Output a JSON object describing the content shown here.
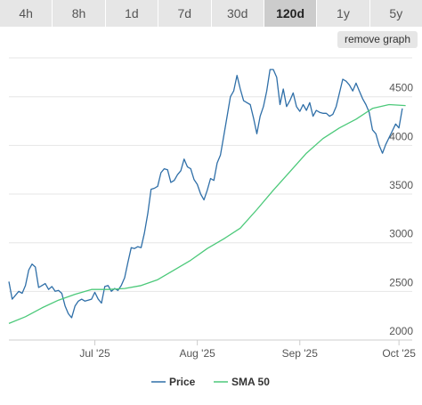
{
  "tabs": [
    {
      "label": "4h",
      "active": false
    },
    {
      "label": "8h",
      "active": false
    },
    {
      "label": "1d",
      "active": false
    },
    {
      "label": "7d",
      "active": false
    },
    {
      "label": "30d",
      "active": false
    },
    {
      "label": "120d",
      "active": true
    },
    {
      "label": "1y",
      "active": false
    },
    {
      "label": "5y",
      "active": false
    }
  ],
  "remove_graph_label": "remove graph",
  "chart_data": {
    "type": "line",
    "x_ticks": [
      "Jul '25",
      "Aug '25",
      "Sep '25",
      "Oct '25"
    ],
    "x_tick_days": [
      26,
      57,
      88,
      118
    ],
    "x_range": [
      0,
      122
    ],
    "ylim": [
      2000,
      4900
    ],
    "y_ticks": [
      2000,
      2500,
      3000,
      3500,
      4000,
      4500
    ],
    "y_tick_labels": [
      "2000",
      "2500",
      "3000",
      "3500",
      "4000",
      "4500"
    ],
    "grid": true,
    "legend_position": "bottom",
    "series": [
      {
        "name": "Price",
        "color": "#2f6fa8",
        "points": [
          [
            0,
            2600
          ],
          [
            1,
            2420
          ],
          [
            2,
            2460
          ],
          [
            3,
            2500
          ],
          [
            4,
            2480
          ],
          [
            5,
            2560
          ],
          [
            6,
            2720
          ],
          [
            7,
            2780
          ],
          [
            8,
            2750
          ],
          [
            9,
            2540
          ],
          [
            10,
            2560
          ],
          [
            11,
            2580
          ],
          [
            12,
            2520
          ],
          [
            13,
            2550
          ],
          [
            14,
            2500
          ],
          [
            15,
            2510
          ],
          [
            16,
            2480
          ],
          [
            17,
            2350
          ],
          [
            18,
            2270
          ],
          [
            19,
            2230
          ],
          [
            20,
            2350
          ],
          [
            21,
            2400
          ],
          [
            22,
            2420
          ],
          [
            23,
            2400
          ],
          [
            24,
            2410
          ],
          [
            25,
            2420
          ],
          [
            26,
            2490
          ],
          [
            27,
            2420
          ],
          [
            28,
            2380
          ],
          [
            29,
            2550
          ],
          [
            30,
            2560
          ],
          [
            31,
            2500
          ],
          [
            32,
            2530
          ],
          [
            33,
            2510
          ],
          [
            34,
            2560
          ],
          [
            35,
            2640
          ],
          [
            36,
            2800
          ],
          [
            37,
            2950
          ],
          [
            38,
            2940
          ],
          [
            39,
            2960
          ],
          [
            40,
            2950
          ],
          [
            41,
            3100
          ],
          [
            42,
            3300
          ],
          [
            43,
            3550
          ],
          [
            44,
            3560
          ],
          [
            45,
            3580
          ],
          [
            46,
            3720
          ],
          [
            47,
            3760
          ],
          [
            48,
            3750
          ],
          [
            49,
            3620
          ],
          [
            50,
            3640
          ],
          [
            51,
            3700
          ],
          [
            52,
            3740
          ],
          [
            53,
            3860
          ],
          [
            54,
            3780
          ],
          [
            55,
            3760
          ],
          [
            56,
            3650
          ],
          [
            57,
            3600
          ],
          [
            58,
            3500
          ],
          [
            59,
            3440
          ],
          [
            60,
            3540
          ],
          [
            61,
            3660
          ],
          [
            62,
            3640
          ],
          [
            63,
            3820
          ],
          [
            64,
            3900
          ],
          [
            65,
            4100
          ],
          [
            66,
            4300
          ],
          [
            67,
            4500
          ],
          [
            68,
            4560
          ],
          [
            69,
            4720
          ],
          [
            70,
            4580
          ],
          [
            71,
            4460
          ],
          [
            72,
            4440
          ],
          [
            73,
            4420
          ],
          [
            74,
            4280
          ],
          [
            75,
            4120
          ],
          [
            76,
            4300
          ],
          [
            77,
            4400
          ],
          [
            78,
            4560
          ],
          [
            79,
            4780
          ],
          [
            80,
            4780
          ],
          [
            81,
            4700
          ],
          [
            82,
            4420
          ],
          [
            83,
            4580
          ],
          [
            84,
            4400
          ],
          [
            85,
            4460
          ],
          [
            86,
            4540
          ],
          [
            87,
            4400
          ],
          [
            88,
            4350
          ],
          [
            89,
            4420
          ],
          [
            90,
            4360
          ],
          [
            91,
            4440
          ],
          [
            92,
            4300
          ],
          [
            93,
            4360
          ],
          [
            94,
            4340
          ],
          [
            95,
            4330
          ],
          [
            96,
            4330
          ],
          [
            97,
            4300
          ],
          [
            98,
            4320
          ],
          [
            99,
            4400
          ],
          [
            100,
            4540
          ],
          [
            101,
            4680
          ],
          [
            102,
            4660
          ],
          [
            103,
            4620
          ],
          [
            104,
            4560
          ],
          [
            105,
            4640
          ],
          [
            106,
            4560
          ],
          [
            107,
            4480
          ],
          [
            108,
            4420
          ],
          [
            109,
            4340
          ],
          [
            110,
            4160
          ],
          [
            111,
            4120
          ],
          [
            112,
            4000
          ],
          [
            113,
            3920
          ],
          [
            114,
            4010
          ],
          [
            115,
            4080
          ],
          [
            116,
            4150
          ],
          [
            117,
            4220
          ],
          [
            118,
            4180
          ],
          [
            119,
            4380
          ]
        ]
      },
      {
        "name": "SMA 50",
        "color": "#4cc97a",
        "points": [
          [
            0,
            2170
          ],
          [
            5,
            2240
          ],
          [
            10,
            2330
          ],
          [
            15,
            2410
          ],
          [
            20,
            2470
          ],
          [
            25,
            2520
          ],
          [
            30,
            2520
          ],
          [
            35,
            2530
          ],
          [
            40,
            2560
          ],
          [
            45,
            2620
          ],
          [
            50,
            2720
          ],
          [
            55,
            2820
          ],
          [
            60,
            2940
          ],
          [
            65,
            3040
          ],
          [
            70,
            3150
          ],
          [
            75,
            3340
          ],
          [
            80,
            3540
          ],
          [
            85,
            3730
          ],
          [
            90,
            3920
          ],
          [
            95,
            4070
          ],
          [
            100,
            4180
          ],
          [
            105,
            4270
          ],
          [
            110,
            4380
          ],
          [
            115,
            4420
          ],
          [
            120,
            4410
          ]
        ]
      }
    ]
  }
}
